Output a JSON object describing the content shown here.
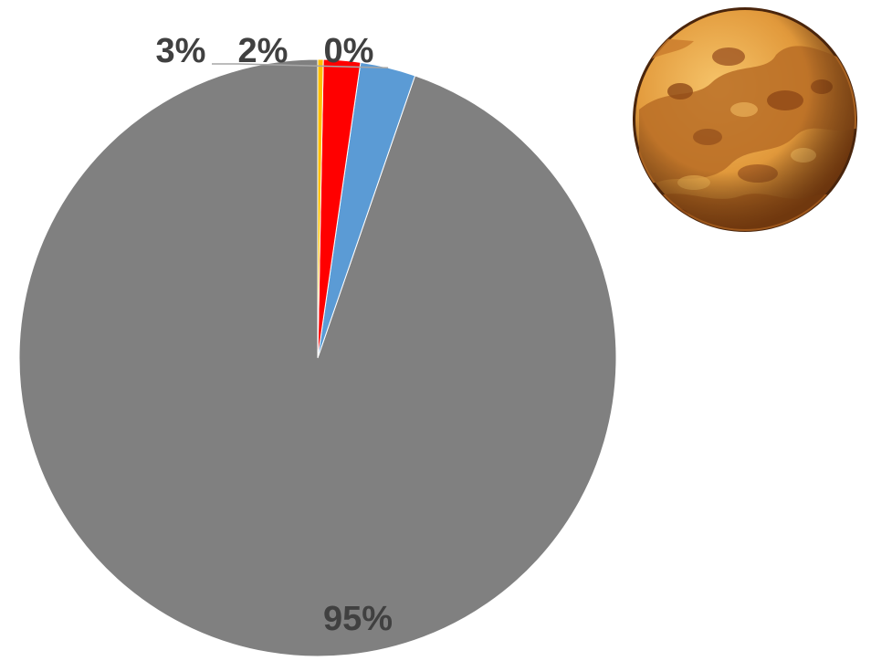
{
  "chart_data": {
    "type": "pie",
    "slices": [
      {
        "value": 95,
        "label": "95%",
        "color": "#808080"
      },
      {
        "value": 3,
        "label": "3%",
        "color": "#5b9bd5"
      },
      {
        "value": 2,
        "label": "2%",
        "color": "#ff0000"
      },
      {
        "value": 0.3,
        "label": "0%",
        "color": "#ffc000"
      }
    ],
    "start": "12 o'clock",
    "direction": "counter-clockwise",
    "legend": "none"
  },
  "illustration": {
    "icon": "planet-icon",
    "colors": {
      "base": "#e0a040",
      "dark": "#b86a22",
      "spots": "#9a4e1a",
      "rim": "#5a2e0e"
    }
  }
}
